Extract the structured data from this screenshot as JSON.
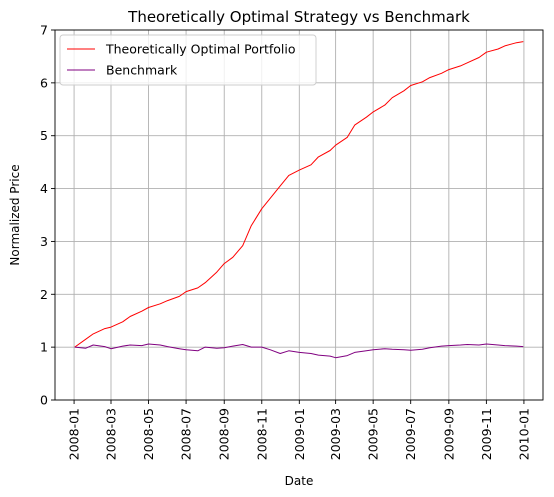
{
  "chart_data": {
    "type": "line",
    "title": "Theoretically Optimal Strategy vs Benchmark",
    "xlabel": "Date",
    "ylabel": "Normalized Price",
    "xlim": [
      "2007-12-01",
      "2010-02-01"
    ],
    "ylim": [
      0,
      7
    ],
    "grid": true,
    "legend_position": "top-left",
    "x_ticks": [
      "2008-01",
      "2008-03",
      "2008-05",
      "2008-07",
      "2008-09",
      "2008-11",
      "2009-01",
      "2009-03",
      "2009-05",
      "2009-07",
      "2009-09",
      "2009-11",
      "2010-01"
    ],
    "y_ticks": [
      "0",
      "1",
      "2",
      "3",
      "4",
      "5",
      "6",
      "7"
    ],
    "series": [
      {
        "name": "Theoretically Optimal Portfolio",
        "color": "#ff0000",
        "x": [
          "2008-01-02",
          "2008-01-20",
          "2008-02-01",
          "2008-02-20",
          "2008-03-01",
          "2008-03-20",
          "2008-04-01",
          "2008-04-20",
          "2008-05-01",
          "2008-05-20",
          "2008-06-01",
          "2008-06-20",
          "2008-07-01",
          "2008-07-20",
          "2008-08-01",
          "2008-08-20",
          "2008-09-01",
          "2008-09-15",
          "2008-10-01",
          "2008-10-15",
          "2008-11-01",
          "2008-11-15",
          "2008-12-01",
          "2008-12-15",
          "2009-01-01",
          "2009-01-20",
          "2009-02-01",
          "2009-02-20",
          "2009-03-01",
          "2009-03-20",
          "2009-04-01",
          "2009-04-20",
          "2009-05-01",
          "2009-05-20",
          "2009-06-01",
          "2009-06-20",
          "2009-07-01",
          "2009-07-20",
          "2009-08-01",
          "2009-08-20",
          "2009-09-01",
          "2009-09-20",
          "2009-10-01",
          "2009-10-20",
          "2009-11-01",
          "2009-11-20",
          "2009-12-01",
          "2009-12-20",
          "2009-12-31"
        ],
        "values": [
          1.0,
          1.15,
          1.25,
          1.35,
          1.38,
          1.48,
          1.58,
          1.68,
          1.75,
          1.82,
          1.88,
          1.96,
          2.05,
          2.12,
          2.22,
          2.42,
          2.58,
          2.7,
          2.92,
          3.3,
          3.62,
          3.82,
          4.05,
          4.25,
          4.35,
          4.45,
          4.6,
          4.72,
          4.82,
          4.97,
          5.2,
          5.35,
          5.45,
          5.58,
          5.72,
          5.85,
          5.95,
          6.02,
          6.1,
          6.18,
          6.25,
          6.32,
          6.38,
          6.48,
          6.58,
          6.64,
          6.7,
          6.76,
          6.78
        ]
      },
      {
        "name": "Benchmark",
        "color": "#800080",
        "x": [
          "2008-01-02",
          "2008-01-20",
          "2008-02-01",
          "2008-02-20",
          "2008-03-01",
          "2008-03-20",
          "2008-04-01",
          "2008-04-20",
          "2008-05-01",
          "2008-05-20",
          "2008-06-01",
          "2008-06-20",
          "2008-07-01",
          "2008-07-20",
          "2008-08-01",
          "2008-08-20",
          "2008-09-01",
          "2008-09-15",
          "2008-10-01",
          "2008-10-15",
          "2008-11-01",
          "2008-11-15",
          "2008-12-01",
          "2008-12-15",
          "2009-01-01",
          "2009-01-20",
          "2009-02-01",
          "2009-02-20",
          "2009-03-01",
          "2009-03-20",
          "2009-04-01",
          "2009-04-20",
          "2009-05-01",
          "2009-05-20",
          "2009-06-01",
          "2009-06-20",
          "2009-07-01",
          "2009-07-20",
          "2009-08-01",
          "2009-08-20",
          "2009-09-01",
          "2009-09-20",
          "2009-10-01",
          "2009-10-20",
          "2009-11-01",
          "2009-11-20",
          "2009-12-01",
          "2009-12-20",
          "2009-12-31"
        ],
        "values": [
          1.0,
          0.98,
          1.04,
          1.01,
          0.97,
          1.02,
          1.04,
          1.03,
          1.06,
          1.04,
          1.01,
          0.97,
          0.95,
          0.93,
          1.0,
          0.98,
          0.99,
          1.02,
          1.05,
          1.0,
          1.0,
          0.95,
          0.88,
          0.93,
          0.9,
          0.88,
          0.85,
          0.83,
          0.8,
          0.84,
          0.9,
          0.93,
          0.95,
          0.97,
          0.96,
          0.95,
          0.94,
          0.96,
          0.99,
          1.02,
          1.03,
          1.04,
          1.05,
          1.04,
          1.06,
          1.04,
          1.03,
          1.02,
          1.01
        ]
      }
    ]
  }
}
